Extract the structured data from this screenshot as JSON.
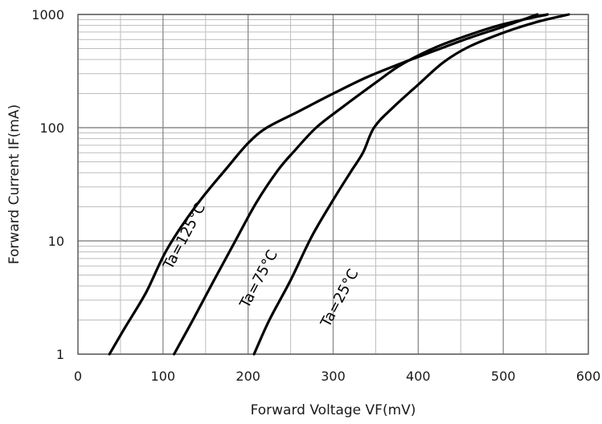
{
  "chart_data": {
    "type": "line",
    "title": "",
    "xlabel": "Forward Voltage   VF(mV)",
    "ylabel": "Forward Current   IF(mA)",
    "xlim": [
      0,
      600
    ],
    "ylim": [
      1,
      1000
    ],
    "yscale": "log",
    "grid": true,
    "x_ticks": [
      0,
      100,
      200,
      300,
      400,
      500,
      600
    ],
    "x_tick_labels": [
      "0",
      "100",
      "200",
      "300",
      "400",
      "500",
      "600"
    ],
    "y_ticks": [
      1,
      10,
      100,
      1000
    ],
    "y_tick_labels": [
      "1",
      "10",
      "100",
      "1000"
    ],
    "series": [
      {
        "name": "Ta=125°C",
        "points": [
          [
            37,
            1
          ],
          [
            55,
            1.7
          ],
          [
            80,
            3.5
          ],
          [
            105,
            8.5
          ],
          [
            140,
            21
          ],
          [
            175,
            44
          ],
          [
            200,
            73
          ],
          [
            222,
            100
          ],
          [
            260,
            140
          ],
          [
            300,
            200
          ],
          [
            340,
            280
          ],
          [
            380,
            370
          ],
          [
            420,
            480
          ],
          [
            460,
            620
          ],
          [
            500,
            780
          ],
          [
            540,
            1000
          ]
        ]
      },
      {
        "name": "Ta=75°C",
        "points": [
          [
            113,
            1
          ],
          [
            135,
            2
          ],
          [
            160,
            4.5
          ],
          [
            185,
            10
          ],
          [
            210,
            22
          ],
          [
            235,
            42
          ],
          [
            255,
            63
          ],
          [
            280,
            100
          ],
          [
            310,
            150
          ],
          [
            350,
            250
          ],
          [
            380,
            360
          ],
          [
            420,
            510
          ],
          [
            460,
            660
          ],
          [
            500,
            820
          ],
          [
            552,
            1000
          ]
        ]
      },
      {
        "name": "Ta=25°C",
        "points": [
          [
            207,
            1
          ],
          [
            225,
            2
          ],
          [
            250,
            4.5
          ],
          [
            275,
            11
          ],
          [
            300,
            23
          ],
          [
            320,
            40
          ],
          [
            335,
            60
          ],
          [
            348,
            100
          ],
          [
            370,
            150
          ],
          [
            400,
            240
          ],
          [
            430,
            380
          ],
          [
            460,
            520
          ],
          [
            500,
            690
          ],
          [
            540,
            860
          ],
          [
            577,
            1000
          ]
        ]
      }
    ]
  }
}
